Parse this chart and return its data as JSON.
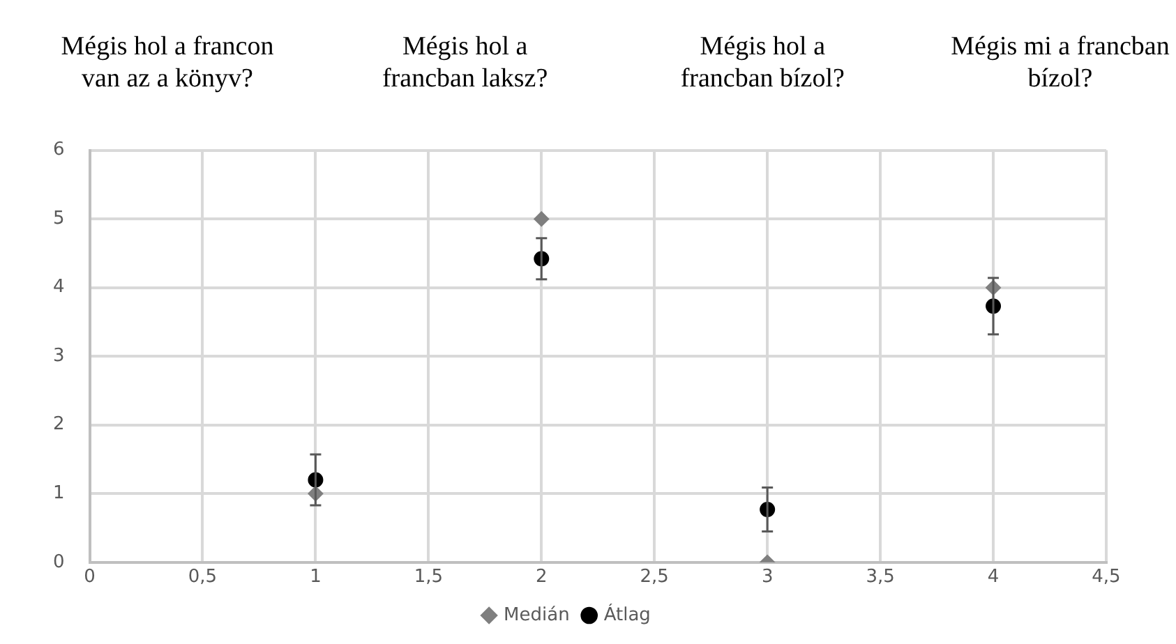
{
  "chart_data": {
    "type": "scatter",
    "annotations": [
      "Mégis hol a francon van az a könyv?",
      "Mégis hol a francban laksz?",
      "Mégis hol a francban bízol?",
      "Mégis mi a francban bízol?"
    ],
    "x": [
      1,
      2,
      3,
      4
    ],
    "series": [
      {
        "name": "Medián",
        "color": "#7f7f7f",
        "marker": "diamond",
        "values": [
          1,
          5,
          0,
          4
        ]
      },
      {
        "name": "Átlag",
        "color": "#000000",
        "marker": "circle",
        "values": [
          1.2,
          4.42,
          0.77,
          3.73
        ],
        "errors": [
          0.37,
          0.3,
          0.32,
          0.41
        ]
      }
    ],
    "xlim": [
      0,
      4.5
    ],
    "xticks": [
      0,
      {
        "value": 0.5,
        "label": "0,5"
      },
      1,
      {
        "value": 1.5,
        "label": "1,5"
      },
      2,
      {
        "value": 2.5,
        "label": "2,5"
      },
      3,
      {
        "value": 3.5,
        "label": "3,5"
      },
      4,
      {
        "value": 4.5,
        "label": "4,5"
      }
    ],
    "ylim": [
      0,
      6
    ],
    "yticks": [
      0,
      1,
      2,
      3,
      4,
      5,
      6
    ],
    "grid": true,
    "legend": "bottom"
  }
}
